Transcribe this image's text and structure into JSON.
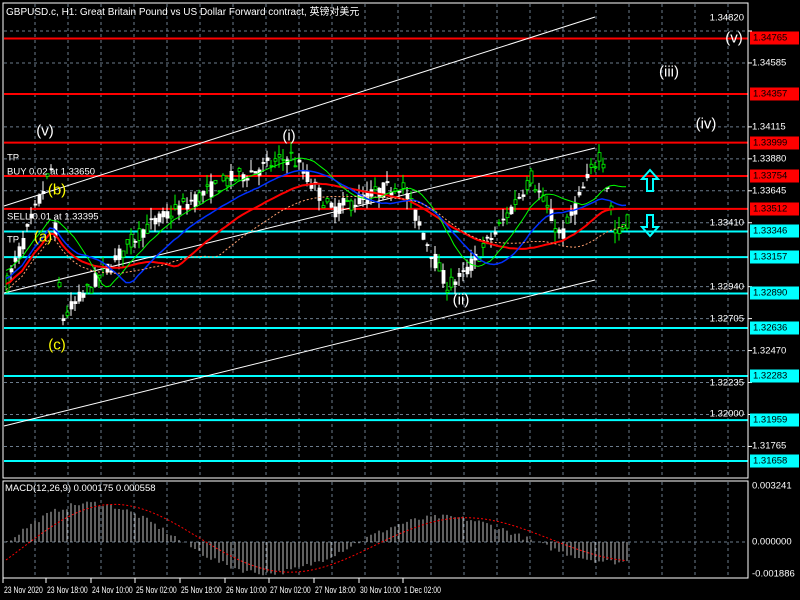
{
  "header": {
    "title": "GBPUSD.c, H1:  Great Britain Pound vs US Dollar Forward contract, 英镑对美元"
  },
  "price_axis": {
    "ticks": [
      "1.34820",
      "1.34585",
      "1.34115",
      "1.33880",
      "1.33645",
      "1.33410",
      "1.32940",
      "1.32705",
      "1.32470",
      "1.32235",
      "1.32000",
      "1.31765"
    ],
    "range": [
      1.313,
      1.35
    ]
  },
  "levels": {
    "resistance_color": "#ff0000",
    "support_color": "#00ffff",
    "resistance": [
      "1.34765",
      "1.34357",
      "1.33999",
      "1.33754",
      "1.33512"
    ],
    "support": [
      "1.33346",
      "1.33157",
      "1.32890",
      "1.32636",
      "1.32283",
      "1.31959",
      "1.31658"
    ]
  },
  "trades": [
    {
      "label": "TP"
    },
    {
      "label": "BUY 0.02 at 1.33650"
    },
    {
      "label": "SELL 0.01 at 1.33395"
    },
    {
      "label": "TP"
    }
  ],
  "waves": [
    {
      "label": "(v)",
      "color": "#ffffff"
    },
    {
      "label": "(b)",
      "color": "#ffff00"
    },
    {
      "label": "(a)",
      "color": "#ffff00"
    },
    {
      "label": "(c)",
      "color": "#ffff00"
    },
    {
      "label": "(i)",
      "color": "#ffffff"
    },
    {
      "label": "(ii)",
      "color": "#ffffff"
    },
    {
      "label": "(iii)",
      "color": "#ffffff"
    },
    {
      "label": "(iv)",
      "color": "#ffffff"
    },
    {
      "label": "(v)",
      "color": "#ffffff"
    }
  ],
  "macd": {
    "label": "MACD(12,26,9) 0.000175 0.000558",
    "ticks": [
      "0.003241",
      "0.000000",
      "-0.001886"
    ]
  },
  "time_axis": [
    "23 Nov 2020",
    "23 Nov 18:00",
    "24 Nov 10:00",
    "25 Nov 02:00",
    "25 Nov 18:00",
    "26 Nov 10:00",
    "27 Nov 02:00",
    "27 Nov 18:00",
    "30 Nov 10:00",
    "1 Dec 02:00"
  ],
  "colors": {
    "bull": "#00ff00",
    "bear": "#ffffff",
    "grid": "#6b7b8c",
    "ma": "#ff0000",
    "cloud": "#ffa070"
  }
}
